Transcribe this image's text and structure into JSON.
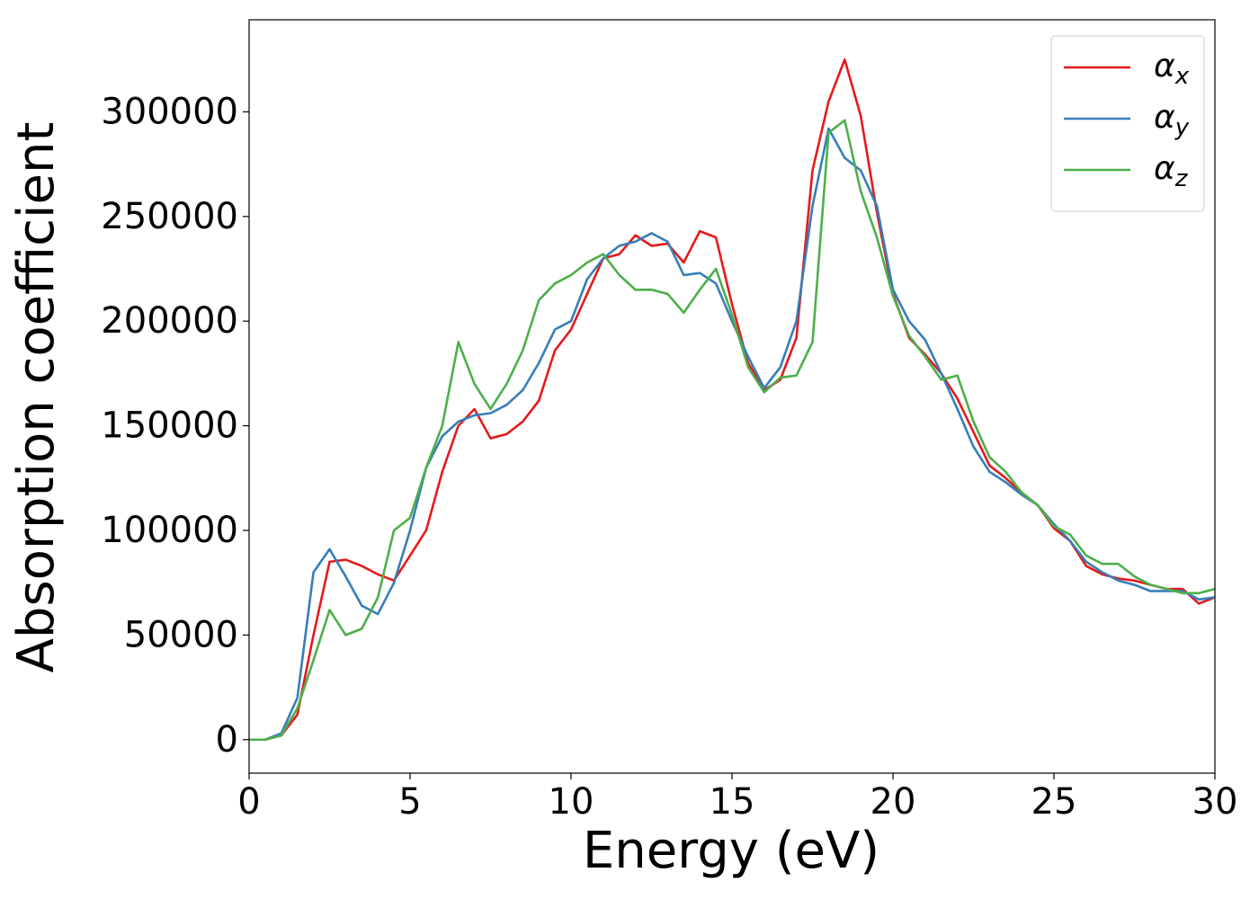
{
  "chart_data": {
    "type": "line",
    "xlabel": "Energy (eV)",
    "ylabel": "Absorption coefficient",
    "x": [
      0,
      0.5,
      1,
      1.5,
      2,
      2.5,
      3,
      3.5,
      4,
      4.5,
      5,
      5.5,
      6,
      6.5,
      7,
      7.5,
      8,
      8.5,
      9,
      9.5,
      10,
      10.5,
      11,
      11.5,
      12,
      12.5,
      13,
      13.5,
      14,
      14.5,
      15,
      15.5,
      16,
      16.5,
      17,
      17.5,
      18,
      18.5,
      19,
      19.5,
      20,
      20.5,
      21,
      21.5,
      22,
      22.5,
      23,
      23.5,
      24,
      24.5,
      25,
      25.5,
      26,
      26.5,
      27,
      27.5,
      28,
      28.5,
      29,
      29.5,
      30
    ],
    "series": [
      {
        "name": "αx",
        "color": "#e41a1c",
        "values": [
          0,
          0,
          2000,
          12000,
          50000,
          85000,
          86000,
          83000,
          79000,
          76000,
          88000,
          100000,
          128000,
          150000,
          158000,
          144000,
          146000,
          152000,
          162000,
          186000,
          196000,
          213000,
          230000,
          232000,
          241000,
          236000,
          237000,
          228000,
          243000,
          240000,
          208000,
          180000,
          167000,
          172000,
          192000,
          272000,
          305000,
          325000,
          298000,
          252000,
          213000,
          192000,
          184000,
          175000,
          163000,
          147000,
          131000,
          125000,
          118000,
          112000,
          101000,
          95000,
          83000,
          79000,
          77000,
          76000,
          74000,
          72000,
          72000,
          65000,
          68000
        ]
      },
      {
        "name": "αy",
        "color": "#377eb8",
        "values": [
          0,
          0,
          3000,
          20000,
          80000,
          91000,
          78000,
          64000,
          60000,
          75000,
          100000,
          130000,
          145000,
          152000,
          155000,
          156000,
          160000,
          167000,
          180000,
          196000,
          200000,
          220000,
          230000,
          236000,
          238000,
          242000,
          238000,
          222000,
          223000,
          218000,
          200000,
          183000,
          168000,
          178000,
          200000,
          255000,
          292000,
          278000,
          272000,
          255000,
          215000,
          200000,
          191000,
          175000,
          158000,
          140000,
          128000,
          123000,
          117000,
          112000,
          103000,
          95000,
          85000,
          80000,
          76000,
          74000,
          71000,
          71000,
          71000,
          67000,
          68000
        ]
      },
      {
        "name": "αz",
        "color": "#4daf4a",
        "values": [
          0,
          0,
          2000,
          15000,
          38000,
          62000,
          50000,
          53000,
          68000,
          100000,
          106000,
          130000,
          150000,
          190000,
          170000,
          158000,
          170000,
          186000,
          210000,
          218000,
          222000,
          228000,
          232000,
          222000,
          215000,
          215000,
          213000,
          204000,
          215000,
          225000,
          203000,
          178000,
          166000,
          173000,
          174000,
          190000,
          290000,
          296000,
          262000,
          240000,
          212000,
          193000,
          183000,
          172000,
          174000,
          152000,
          135000,
          128000,
          118000,
          112000,
          102000,
          98000,
          88000,
          84000,
          84000,
          78000,
          74000,
          72000,
          70000,
          70000,
          72000
        ]
      }
    ],
    "xlim": [
      0,
      30
    ],
    "xticks": [
      0,
      5,
      10,
      15,
      20,
      25,
      30
    ],
    "ylim": [
      -16000,
      344000
    ],
    "yticks": [
      0,
      50000,
      100000,
      150000,
      200000,
      250000,
      300000
    ],
    "grid": false,
    "legend": "upper right"
  }
}
